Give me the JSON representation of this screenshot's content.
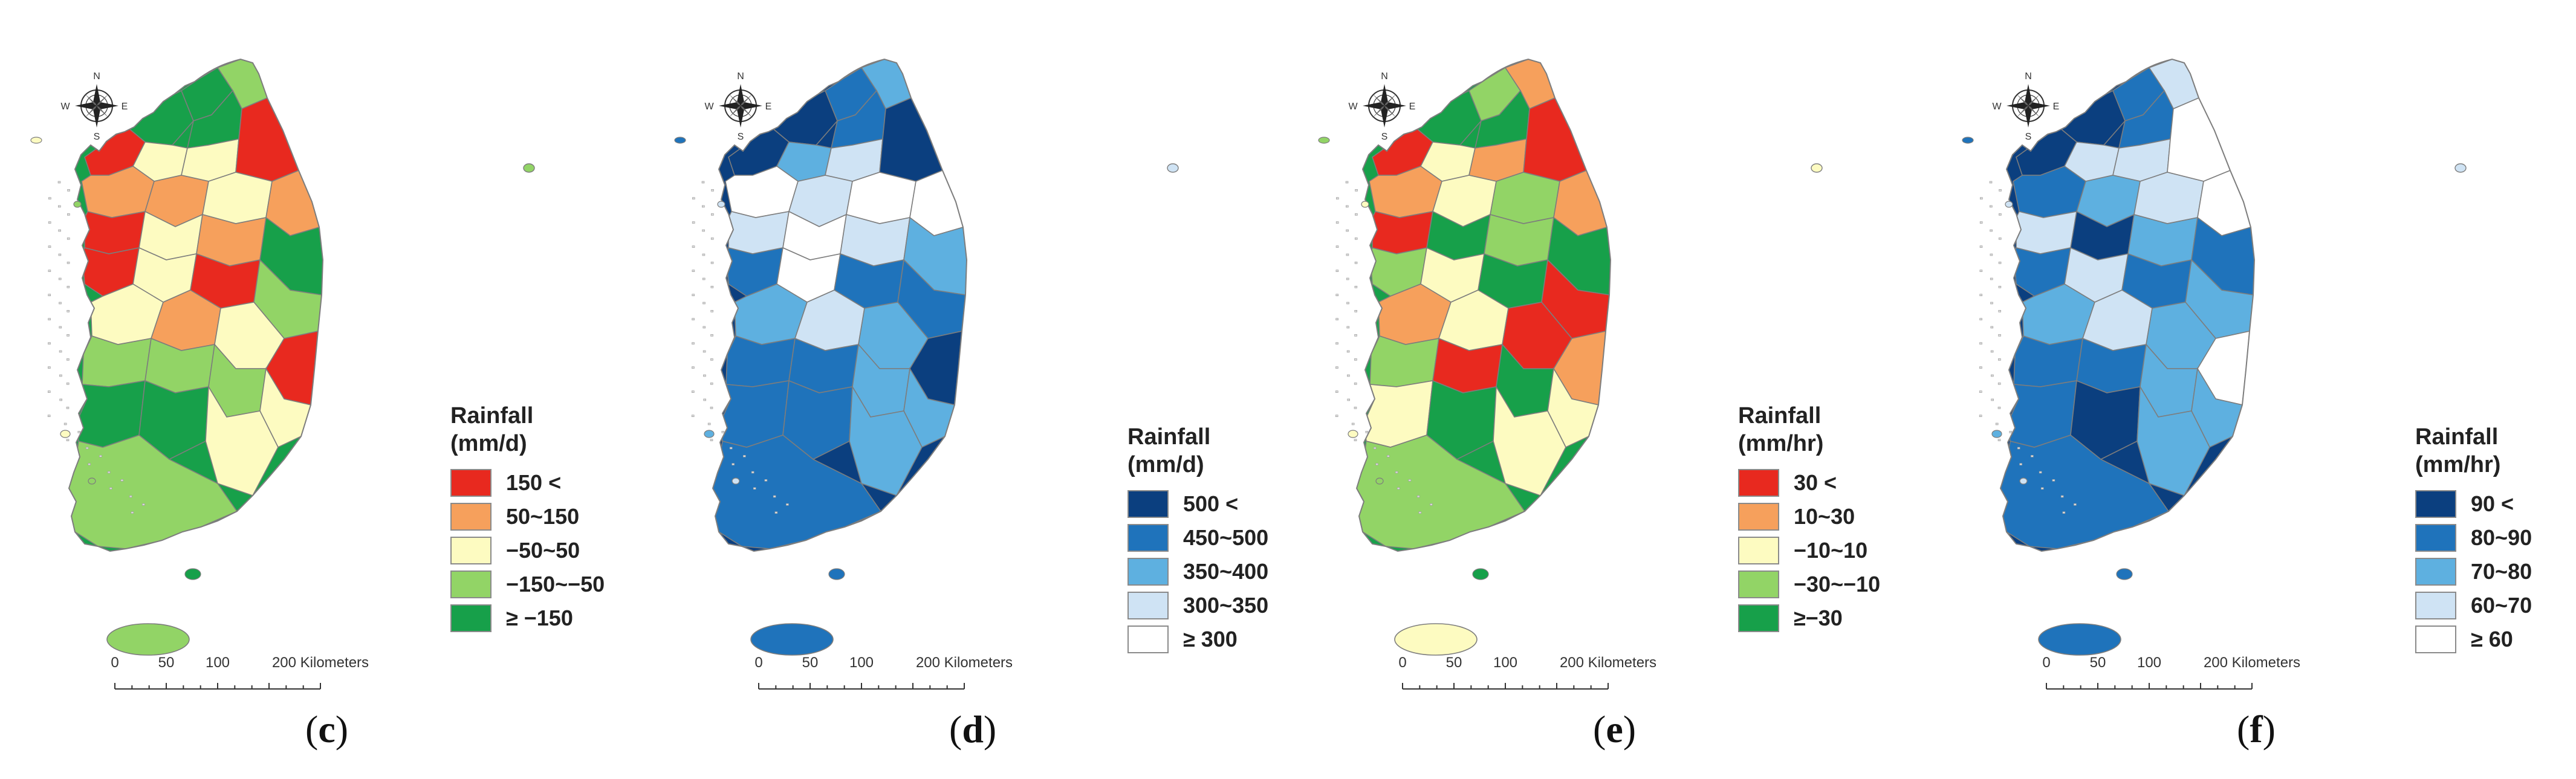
{
  "colors": {
    "red": "#e8291f",
    "orange": "#f6a05c",
    "cream": "#fdfbc1",
    "lightgreen": "#92d466",
    "green": "#17a04a",
    "b5": "#0b3f7f",
    "b4": "#1f73bb",
    "b3": "#5eb0e0",
    "b2": "#cfe3f4",
    "b1": "#ffffff",
    "outline": "#7d7d7d"
  },
  "compass": {
    "n": "N",
    "s": "S",
    "e": "E",
    "w": "W"
  },
  "scalebar": {
    "ticks": [
      "0",
      "50",
      "100",
      "200 Kilometers"
    ]
  },
  "panels": [
    {
      "id": "c",
      "label": "c",
      "legend": {
        "title1": "Rainfall",
        "title2": "(mm/d)",
        "items": [
          {
            "label": "150 <",
            "color": "#e8291f"
          },
          {
            "label": "50~150",
            "color": "#f6a05c"
          },
          {
            "label": "−50~50",
            "color": "#fdfbc1"
          },
          {
            "label": "−150~−50",
            "color": "#92d466"
          },
          {
            "label": "≥ −150",
            "color": "#17a04a"
          }
        ]
      }
    },
    {
      "id": "d",
      "label": "d",
      "legend": {
        "title1": "Rainfall",
        "title2": "(mm/d)",
        "items": [
          {
            "label": "500 <",
            "color": "#0b3f7f"
          },
          {
            "label": "450~500",
            "color": "#1f73bb"
          },
          {
            "label": "350~400",
            "color": "#5eb0e0"
          },
          {
            "label": "300~350",
            "color": "#cfe3f4"
          },
          {
            "label": "≥ 300",
            "color": "#ffffff"
          }
        ]
      }
    },
    {
      "id": "e",
      "label": "e",
      "legend": {
        "title1": "Rainfall",
        "title2": "(mm/hr)",
        "items": [
          {
            "label": "30 <",
            "color": "#e8291f"
          },
          {
            "label": "10~30",
            "color": "#f6a05c"
          },
          {
            "label": "−10~10",
            "color": "#fdfbc1"
          },
          {
            "label": "−30~−10",
            "color": "#92d466"
          },
          {
            "label": "≥−30",
            "color": "#17a04a"
          }
        ]
      }
    },
    {
      "id": "f",
      "label": "f",
      "legend": {
        "title1": "Rainfall",
        "title2": "(mm/hr)",
        "items": [
          {
            "label": "90 <",
            "color": "#0b3f7f"
          },
          {
            "label": "80~90",
            "color": "#1f73bb"
          },
          {
            "label": "70~80",
            "color": "#5eb0e0"
          },
          {
            "label": "60~70",
            "color": "#cfe3f4"
          },
          {
            "label": "≥ 60",
            "color": "#ffffff"
          }
        ]
      }
    }
  ],
  "region_classes": {
    "c": [
      "green",
      "green",
      "lightgreen",
      "green",
      "red",
      "cream",
      "cream",
      "red",
      "orange",
      "orange",
      "cream",
      "orange",
      "red",
      "cream",
      "orange",
      "green",
      "red",
      "cream",
      "red",
      "lightgreen",
      "cream",
      "orange",
      "cream",
      "red",
      "lightgreen",
      "lightgreen",
      "lightgreen",
      "cream",
      "green",
      "green",
      "cream",
      "lightgreen"
    ],
    "d": [
      "b5",
      "b4",
      "b3",
      "b4",
      "b5",
      "b3",
      "b2",
      "b5",
      "b1",
      "b2",
      "b1",
      "b1",
      "b2",
      "b1",
      "b2",
      "b3",
      "b4",
      "b1",
      "b4",
      "b4",
      "b3",
      "b2",
      "b3",
      "b5",
      "b4",
      "b4",
      "b3",
      "b3",
      "b4",
      "b4",
      "b3",
      "b4"
    ],
    "e": [
      "green",
      "lightgreen",
      "orange",
      "green",
      "red",
      "cream",
      "orange",
      "red",
      "orange",
      "cream",
      "lightgreen",
      "orange",
      "red",
      "green",
      "lightgreen",
      "green",
      "lightgreen",
      "cream",
      "green",
      "red",
      "orange",
      "cream",
      "red",
      "orange",
      "lightgreen",
      "red",
      "green",
      "cream",
      "cream",
      "green",
      "cream",
      "lightgreen"
    ],
    "f": [
      "b5",
      "b4",
      "b2",
      "b4",
      "b5",
      "b2",
      "b2",
      "b1",
      "b4",
      "b3",
      "b2",
      "b1",
      "b2",
      "b5",
      "b3",
      "b4",
      "b4",
      "b2",
      "b4",
      "b3",
      "b3",
      "b2",
      "b3",
      "b1",
      "b4",
      "b4",
      "b3",
      "b3",
      "b4",
      "b5",
      "b3",
      "b4"
    ]
  },
  "jeju_class": {
    "c": "lightgreen",
    "d": "b4",
    "e": "cream",
    "f": "b4"
  },
  "islet_class": {
    "c": [
      "cream",
      "lightgreen",
      "cream",
      "lightgreen",
      "green"
    ],
    "d": [
      "b4",
      "b2",
      "b3",
      "b2",
      "b4"
    ],
    "e": [
      "lightgreen",
      "cream",
      "cream",
      "lightgreen",
      "green"
    ],
    "f": [
      "b4",
      "b2",
      "b3",
      "b2",
      "b4"
    ]
  }
}
